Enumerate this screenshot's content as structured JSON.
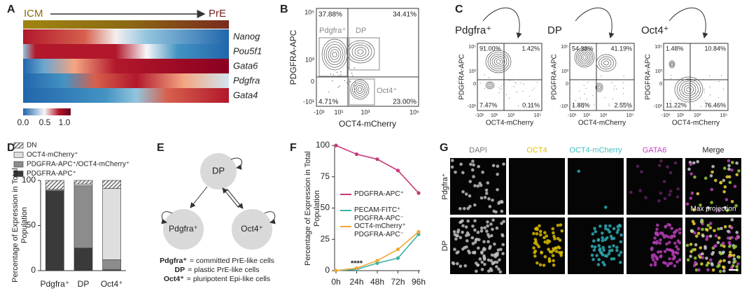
{
  "panels": {
    "a": {
      "label": "A",
      "start": "ICM",
      "end": "PrE",
      "genes": [
        "Nanog",
        "Pou5f1",
        "Gata6",
        "Pdgfra",
        "Gata4"
      ],
      "colorbar_ticks": [
        "0.0",
        "0.5",
        "1.0"
      ]
    },
    "b": {
      "label": "B",
      "y_label": "PDGFRA-APC",
      "x_label": "OCT4-mCherry",
      "y_ticks": [
        "10⁵",
        "10³",
        "0",
        "-10¹"
      ],
      "x_ticks": [
        "-10¹",
        "10¹",
        "10³",
        "10⁵"
      ],
      "quadrants": [
        "37.88%",
        "34.41%",
        "4.71%",
        "23.00%"
      ],
      "gates": [
        "Pdgfra⁺",
        "DP",
        "Oct4⁺"
      ]
    },
    "c": {
      "label": "C",
      "y_label": "PDGFRA-APC",
      "x_label": "OCT4-mCherry",
      "y_ticks": [
        "10⁵",
        "10³",
        "0",
        "-10¹"
      ],
      "x_ticks": [
        "-10¹",
        "10¹",
        "10³",
        "10⁵"
      ],
      "plots": [
        {
          "title": "Pdgfra⁺",
          "quadrants": [
            "91.00%",
            "1.42%",
            "7.47%",
            "0.11%"
          ]
        },
        {
          "title": "DP",
          "quadrants": [
            "54.38%",
            "41.19%",
            "1.88%",
            "2.55%"
          ]
        },
        {
          "title": "Oct4⁺",
          "quadrants": [
            "1.48%",
            "10.84%",
            "11.22%",
            "76.46%"
          ]
        }
      ]
    },
    "d": {
      "label": "D"
    },
    "e": {
      "label": "E",
      "nodes": [
        "DP",
        "Pdgfra⁺",
        "Oct4⁺"
      ],
      "key": [
        {
          "term": "Pdgfra⁺",
          "text": "= committed PrE-like cells"
        },
        {
          "term": "DP",
          "text": "= plastic PrE-like cells"
        },
        {
          "term": "Oct4⁺",
          "text": "= pluripotent Epi-like cells"
        }
      ]
    },
    "f": {
      "label": "F"
    },
    "g": {
      "label": "G",
      "columns": [
        "DAPI",
        "OCT4",
        "OCT4-mCherry",
        "GATA6",
        "Merge"
      ],
      "rows": [
        "Pdgfra⁺",
        "DP"
      ],
      "note": "Max projection"
    }
  },
  "chart_data": [
    {
      "type": "bar",
      "stacked": true,
      "y_label": "Percentage of Expression in Total Population",
      "categories": [
        "Pdgfra⁺",
        "DP",
        "Oct4⁺"
      ],
      "series": [
        {
          "name": "PDGFRA-APC⁺",
          "color": "#3a3a3a",
          "values": [
            88,
            25,
            1
          ]
        },
        {
          "name": "PDGFRA-APC⁺/OCT4-mCherry⁺",
          "color": "#8c8c8c",
          "values": [
            1,
            69,
            11
          ]
        },
        {
          "name": "OCT4-mCherry⁺",
          "color": "#dedede",
          "values": [
            1,
            2,
            79
          ]
        },
        {
          "name": "DN",
          "color": "#555555",
          "hatch": true,
          "values": [
            10,
            4,
            9
          ]
        }
      ],
      "ylim": [
        0,
        100
      ],
      "yticks": [
        0,
        50,
        100
      ]
    },
    {
      "type": "line",
      "y_label": "Percentage of Expression in Total Population",
      "annotation": "****",
      "categories": [
        "0h",
        "24h",
        "48h",
        "72h",
        "96h"
      ],
      "series": [
        {
          "name": "PDGFRA-APC⁺",
          "color": "#c8387a",
          "values": [
            100,
            93,
            89,
            80,
            62
          ]
        },
        {
          "name": "PECAM-FITC⁺ PDGFRA-APC⁻",
          "color": "#3bb3a6",
          "values": [
            0,
            1,
            6,
            10,
            29
          ]
        },
        {
          "name": "OCT4-mCherry⁺ PDGFRA-APC⁻",
          "color": "#f2a735",
          "values": [
            0,
            2,
            8,
            17,
            31
          ]
        }
      ],
      "ylim": [
        0,
        100
      ],
      "yticks": [
        0,
        25,
        50,
        75,
        100
      ]
    }
  ]
}
